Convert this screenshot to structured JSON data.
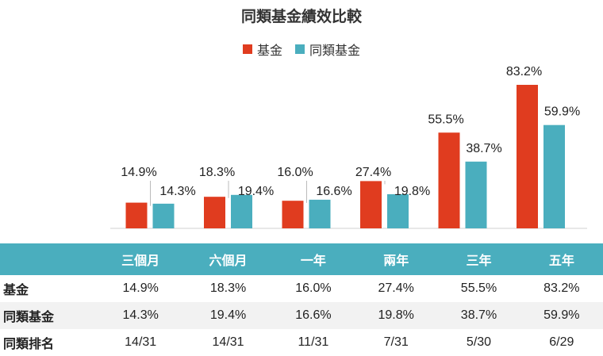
{
  "chart_data": {
    "type": "bar",
    "title": "同類基金績效比較",
    "categories": [
      "三個月",
      "六個月",
      "一年",
      "兩年",
      "三年",
      "五年"
    ],
    "series": [
      {
        "name": "基金",
        "values": [
          14.9,
          18.3,
          16.0,
          27.4,
          55.5,
          83.2
        ],
        "color": "#e03c1f"
      },
      {
        "name": "同類基金",
        "values": [
          14.3,
          19.4,
          16.6,
          19.8,
          38.7,
          59.9
        ],
        "color": "#4aaebe"
      }
    ],
    "data_labels": {
      "基金": [
        "14.9%",
        "18.3%",
        "16.0%",
        "27.4%",
        "55.5%",
        "83.2%"
      ],
      "同類基金": [
        "14.3%",
        "19.4%",
        "16.6%",
        "19.8%",
        "38.7%",
        "59.9%"
      ]
    },
    "legend": "top-center",
    "ylim": [
      0,
      90
    ],
    "grid": false
  },
  "table": {
    "rows": [
      {
        "label": "基金",
        "values": [
          "14.9%",
          "18.3%",
          "16.0%",
          "27.4%",
          "55.5%",
          "83.2%"
        ]
      },
      {
        "label": "同類基金",
        "values": [
          "14.3%",
          "19.4%",
          "16.6%",
          "19.8%",
          "38.7%",
          "59.9%"
        ]
      },
      {
        "label": "同類排名",
        "values": [
          "14/31",
          "14/31",
          "11/31",
          "7/31",
          "5/30",
          "6/29"
        ]
      }
    ]
  }
}
